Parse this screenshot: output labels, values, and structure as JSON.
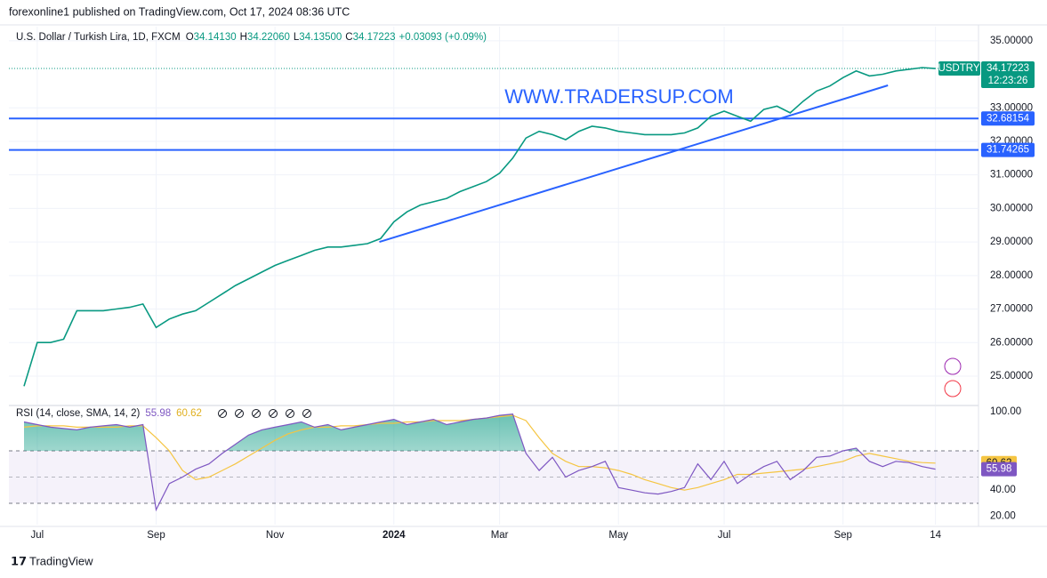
{
  "header": {
    "published": "forexonline1 published on TradingView.com, Oct 17, 2024 08:36 UTC"
  },
  "footer": {
    "brand": "TradingView"
  },
  "chart_data": [
    {
      "type": "line",
      "title": "U.S. Dollar / Turkish Lira, 1D, FXCM",
      "ohlc": [
        {
          "key": "O",
          "value": "34.14130"
        },
        {
          "key": "H",
          "value": "34.22060"
        },
        {
          "key": "L",
          "value": "34.13500"
        },
        {
          "key": "C",
          "value": "34.17223"
        }
      ],
      "change": "+0.03093 (+0.09%)",
      "watermark": "WWW.TRADERSUP.COM",
      "categories": [
        null,
        "Jul",
        null,
        null,
        null,
        null,
        null,
        null,
        null,
        null,
        "Sep",
        null,
        null,
        null,
        null,
        null,
        null,
        null,
        null,
        "Nov",
        null,
        null,
        null,
        null,
        null,
        null,
        null,
        null,
        "2024",
        null,
        null,
        null,
        null,
        null,
        null,
        null,
        "Mar",
        null,
        null,
        null,
        null,
        null,
        null,
        null,
        null,
        "May",
        null,
        null,
        null,
        null,
        null,
        null,
        null,
        "Jul",
        null,
        null,
        null,
        null,
        null,
        null,
        null,
        null,
        "Sep",
        null,
        null,
        null,
        null,
        null,
        null,
        "14"
      ],
      "series": [
        {
          "name": "USDTRY",
          "color": "#089981",
          "values": [
            24.7,
            26.0,
            26.0,
            26.1,
            26.95,
            26.95,
            26.95,
            27.0,
            27.05,
            27.15,
            26.45,
            26.7,
            26.85,
            26.95,
            27.2,
            27.45,
            27.7,
            27.9,
            28.1,
            28.3,
            28.45,
            28.6,
            28.75,
            28.85,
            28.85,
            28.9,
            28.95,
            29.1,
            29.6,
            29.9,
            30.1,
            30.2,
            30.3,
            30.5,
            30.65,
            30.8,
            31.05,
            31.5,
            32.1,
            32.3,
            32.2,
            32.05,
            32.3,
            32.45,
            32.4,
            32.3,
            32.25,
            32.2,
            32.2,
            32.2,
            32.25,
            32.4,
            32.75,
            32.9,
            32.75,
            32.6,
            32.95,
            33.05,
            32.85,
            33.2,
            33.5,
            33.65,
            33.9,
            34.1,
            33.95,
            34.0,
            34.1,
            34.15,
            34.2,
            34.17223
          ]
        }
      ],
      "countdown": "12:23:26",
      "ylim": [
        24.15,
        35.42
      ],
      "yticks": [
        {
          "value": 25,
          "label": "25.00000"
        },
        {
          "value": 26,
          "label": "26.00000"
        },
        {
          "value": 27,
          "label": "27.00000"
        },
        {
          "value": 28,
          "label": "28.00000"
        },
        {
          "value": 29,
          "label": "29.00000"
        },
        {
          "value": 30,
          "label": "30.00000"
        },
        {
          "value": 31,
          "label": "31.00000"
        },
        {
          "value": 32,
          "label": "32.00000"
        },
        {
          "value": 33,
          "label": "33.00000"
        },
        {
          "value": 35,
          "label": "35.00000"
        }
      ],
      "grid": true,
      "hlines": [
        32.68154,
        31.74265
      ],
      "hline_color": "#2962ff",
      "trendline": [
        29.0,
        33.67
      ]
    },
    {
      "type": "rsi",
      "title": "RSI (14, close, SMA, 14, 2)",
      "series": [
        {
          "color": "#7e57c2",
          "values": [
            92,
            90,
            88,
            87,
            86,
            88,
            89,
            90,
            88,
            90,
            25,
            45,
            50,
            56,
            60,
            68,
            75,
            82,
            86,
            88,
            90,
            92,
            88,
            90,
            86,
            88,
            90,
            92,
            94,
            90,
            92,
            94,
            90,
            92,
            94,
            95,
            97,
            98,
            68,
            55,
            65,
            50,
            55,
            58,
            62,
            42,
            40,
            38,
            37,
            39,
            42,
            60,
            48,
            62,
            45,
            52,
            58,
            62,
            48,
            55,
            65,
            66,
            70,
            72,
            62,
            58,
            62,
            61,
            58,
            55.98
          ]
        },
        {
          "color": "#f5c542",
          "values": [
            88,
            89,
            89,
            89,
            88,
            88,
            88,
            88,
            89,
            89,
            80,
            70,
            55,
            48,
            50,
            55,
            60,
            66,
            72,
            78,
            83,
            86,
            88,
            88,
            89,
            89,
            90,
            91,
            91,
            92,
            92,
            93,
            93,
            93,
            94,
            95,
            96,
            97,
            93,
            80,
            68,
            62,
            58,
            58,
            57,
            55,
            52,
            48,
            45,
            42,
            40,
            42,
            45,
            48,
            52,
            52,
            53,
            54,
            55,
            56,
            58,
            60,
            62,
            66,
            68,
            66,
            64,
            62,
            61,
            60.62
          ]
        }
      ],
      "ylim": [
        13.7,
        103.2
      ],
      "yticks": [
        {
          "value": 100,
          "label": "100.00"
        },
        {
          "value": 40,
          "label": "40.00"
        },
        {
          "value": 20,
          "label": "20.00"
        }
      ],
      "bands": [
        70,
        50,
        30
      ]
    }
  ]
}
